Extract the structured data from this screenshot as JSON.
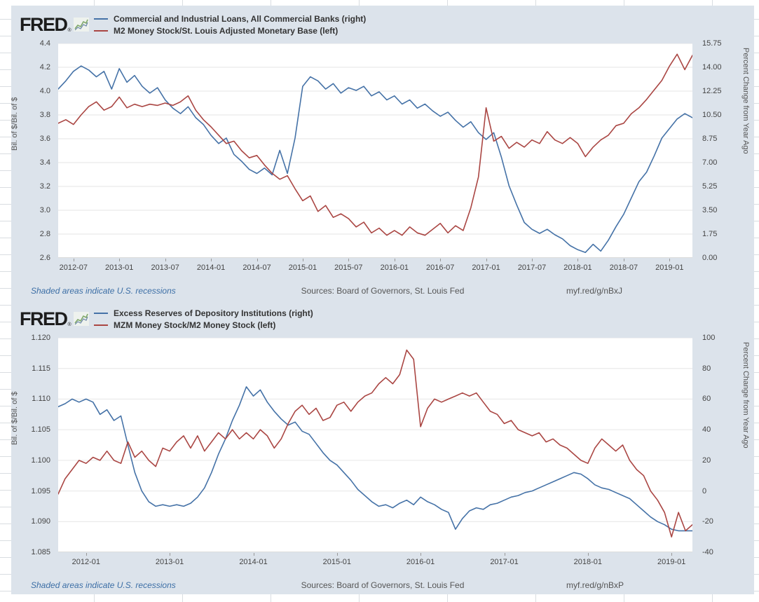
{
  "colors": {
    "background": "#dce3eb",
    "plot_background": "#ffffff",
    "gridline": "#e6e6e6",
    "axis_line": "#b8b8b8",
    "blue": "#4572a7",
    "red": "#aa4643"
  },
  "sections": [
    {
      "wordmark": "FRED",
      "registered_mark": "®",
      "footer": {
        "recessions": "Shaded areas indicate U.S. recessions",
        "sources": "Sources: Board of Governors, St. Louis Fed",
        "link": "myf.red/g/nBxJ"
      }
    },
    {
      "wordmark": "FRED",
      "registered_mark": "®",
      "footer": {
        "recessions": "Shaded areas indicate U.S. recessions",
        "sources": "Sources: Board of Governors, St. Louis Fed",
        "link": "myf.red/g/nBxP"
      }
    }
  ],
  "chart_data": [
    {
      "type": "line",
      "x_start": "2012-05",
      "x_interval": "monthly",
      "grid": "horizontal-only",
      "legend_position": "top-left",
      "left_axis": {
        "label": "Bil. of $/Bil. of $",
        "range": [
          2.6,
          4.4
        ],
        "tick_labels": [
          "4.4",
          "4.2",
          "4.0",
          "3.8",
          "3.6",
          "3.4",
          "3.2",
          "3.0",
          "2.8",
          "2.6"
        ]
      },
      "right_axis": {
        "label": "Percent Change from Year Ago",
        "range": [
          0,
          15.75
        ],
        "tick_labels": [
          "15.75",
          "14.00",
          "12.25",
          "10.50",
          "8.75",
          "7.00",
          "5.25",
          "3.50",
          "1.75",
          "0.00"
        ]
      },
      "x_ticks": [
        {
          "label": "2012-07",
          "offset": 2
        },
        {
          "label": "2013-01",
          "offset": 8
        },
        {
          "label": "2013-07",
          "offset": 14
        },
        {
          "label": "2014-01",
          "offset": 20
        },
        {
          "label": "2014-07",
          "offset": 26
        },
        {
          "label": "2015-01",
          "offset": 32
        },
        {
          "label": "2015-07",
          "offset": 38
        },
        {
          "label": "2016-01",
          "offset": 44
        },
        {
          "label": "2016-07",
          "offset": 50
        },
        {
          "label": "2017-01",
          "offset": 56
        },
        {
          "label": "2017-07",
          "offset": 62
        },
        {
          "label": "2018-01",
          "offset": 68
        },
        {
          "label": "2018-07",
          "offset": 74
        },
        {
          "label": "2019-01",
          "offset": 80
        }
      ],
      "series": [
        {
          "name": "Commercial and Industrial Loans, All Commercial Banks (right)",
          "axis": "right",
          "color_key": "blue",
          "values": [
            12.4,
            13.0,
            13.7,
            14.1,
            13.8,
            13.3,
            13.7,
            12.4,
            13.9,
            12.9,
            13.4,
            12.6,
            12.1,
            12.5,
            11.6,
            11.0,
            10.6,
            11.1,
            10.3,
            9.8,
            9.0,
            8.4,
            8.8,
            7.6,
            7.1,
            6.5,
            6.2,
            6.6,
            6.1,
            7.9,
            6.2,
            8.8,
            12.6,
            13.3,
            13.0,
            12.4,
            12.8,
            12.1,
            12.5,
            12.3,
            12.6,
            11.9,
            12.2,
            11.6,
            11.9,
            11.3,
            11.6,
            11.0,
            11.3,
            10.8,
            10.4,
            10.7,
            10.1,
            9.6,
            10.0,
            9.2,
            8.7,
            9.2,
            7.4,
            5.3,
            3.9,
            2.6,
            2.1,
            1.8,
            2.1,
            1.7,
            1.4,
            0.9,
            0.6,
            0.4,
            1.0,
            0.5,
            1.3,
            2.3,
            3.2,
            4.4,
            5.6,
            6.3,
            7.5,
            8.8,
            9.5,
            10.2,
            10.6,
            10.3
          ]
        },
        {
          "name": "M2 Money Stock/St. Louis Adjusted Monetary Base (left)",
          "axis": "left",
          "color_key": "red",
          "values": [
            3.73,
            3.76,
            3.72,
            3.8,
            3.87,
            3.91,
            3.84,
            3.87,
            3.95,
            3.86,
            3.89,
            3.87,
            3.89,
            3.88,
            3.9,
            3.88,
            3.91,
            3.96,
            3.84,
            3.76,
            3.7,
            3.63,
            3.56,
            3.58,
            3.5,
            3.44,
            3.46,
            3.38,
            3.31,
            3.26,
            3.29,
            3.18,
            3.08,
            3.12,
            2.99,
            3.04,
            2.94,
            2.97,
            2.93,
            2.86,
            2.9,
            2.81,
            2.85,
            2.79,
            2.83,
            2.79,
            2.86,
            2.81,
            2.79,
            2.84,
            2.89,
            2.81,
            2.87,
            2.83,
            3.02,
            3.28,
            3.86,
            3.58,
            3.62,
            3.52,
            3.57,
            3.53,
            3.59,
            3.56,
            3.66,
            3.59,
            3.56,
            3.61,
            3.56,
            3.45,
            3.53,
            3.59,
            3.63,
            3.71,
            3.73,
            3.81,
            3.86,
            3.93,
            4.01,
            4.09,
            4.21,
            4.31,
            4.18,
            4.3
          ]
        }
      ]
    },
    {
      "type": "line",
      "x_start": "2011-09",
      "x_interval": "monthly",
      "grid": "horizontal-only",
      "legend_position": "top-left",
      "left_axis": {
        "label": "Bil. of $/Bil. of $",
        "range": [
          1.085,
          1.12
        ],
        "tick_labels": [
          "1.120",
          "1.115",
          "1.110",
          "1.105",
          "1.100",
          "1.095",
          "1.090",
          "1.085"
        ]
      },
      "right_axis": {
        "label": "Percent Change from Year Ago",
        "range": [
          -40,
          100
        ],
        "tick_labels": [
          "100",
          "80",
          "60",
          "40",
          "20",
          "0",
          "-20",
          "-40"
        ]
      },
      "x_ticks": [
        {
          "label": "2012-01",
          "offset": 4
        },
        {
          "label": "2013-01",
          "offset": 16
        },
        {
          "label": "2014-01",
          "offset": 28
        },
        {
          "label": "2015-01",
          "offset": 40
        },
        {
          "label": "2016-01",
          "offset": 52
        },
        {
          "label": "2017-01",
          "offset": 64
        },
        {
          "label": "2018-01",
          "offset": 76
        },
        {
          "label": "2019-01",
          "offset": 88
        }
      ],
      "series": [
        {
          "name": "Excess Reserves of Depository Institutions (right)",
          "axis": "right",
          "color_key": "blue",
          "values": [
            55,
            57,
            60,
            58,
            60,
            58,
            50,
            53,
            46,
            49,
            30,
            12,
            0,
            -7,
            -10,
            -9,
            -10,
            -9,
            -10,
            -8,
            -4,
            2,
            12,
            24,
            34,
            46,
            56,
            68,
            62,
            66,
            58,
            52,
            47,
            43,
            45,
            39,
            37,
            31,
            25,
            20,
            17,
            12,
            7,
            1,
            -3,
            -7,
            -10,
            -9,
            -11,
            -8,
            -6,
            -9,
            -4,
            -7,
            -9,
            -12,
            -14,
            -25,
            -18,
            -13,
            -11,
            -12,
            -9,
            -8,
            -6,
            -4,
            -3,
            -1,
            0,
            2,
            4,
            6,
            8,
            10,
            12,
            11,
            8,
            4,
            2,
            1,
            -1,
            -3,
            -5,
            -9,
            -13,
            -17,
            -20,
            -22,
            -25,
            -26,
            -26,
            -26
          ]
        },
        {
          "name": "MZM Money Stock/M2 Money Stock (left)",
          "axis": "left",
          "color_key": "red",
          "values": [
            1.0945,
            1.097,
            1.0985,
            1.1,
            1.0995,
            1.1005,
            1.1,
            1.1015,
            1.1,
            1.0995,
            1.103,
            1.1005,
            1.1015,
            1.1,
            1.099,
            1.102,
            1.1015,
            1.103,
            1.104,
            1.102,
            1.104,
            1.1015,
            1.103,
            1.1045,
            1.1035,
            1.105,
            1.1035,
            1.1045,
            1.1035,
            1.105,
            1.104,
            1.102,
            1.1035,
            1.106,
            1.108,
            1.109,
            1.1075,
            1.1085,
            1.1065,
            1.107,
            1.109,
            1.1095,
            1.108,
            1.1095,
            1.1105,
            1.111,
            1.1125,
            1.1135,
            1.1125,
            1.114,
            1.118,
            1.1165,
            1.1055,
            1.1085,
            1.11,
            1.1095,
            1.11,
            1.1105,
            1.111,
            1.1105,
            1.111,
            1.1095,
            1.108,
            1.1075,
            1.106,
            1.1065,
            1.105,
            1.1045,
            1.104,
            1.1045,
            1.103,
            1.1035,
            1.1025,
            1.102,
            1.101,
            1.1,
            1.0995,
            1.102,
            1.1035,
            1.1025,
            1.1015,
            1.1025,
            1.1,
            1.0985,
            1.0975,
            1.095,
            1.0935,
            1.0915,
            1.0875,
            1.0915,
            1.0885,
            1.0895
          ]
        }
      ]
    }
  ]
}
